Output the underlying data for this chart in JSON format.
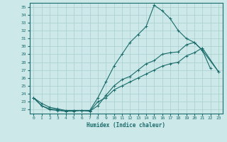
{
  "xlabel": "Humidex (Indice chaleur)",
  "bg_color": "#cce8e8",
  "grid_color": "#aacece",
  "line_color": "#1a6b6b",
  "xlim": [
    -0.5,
    23.5
  ],
  "ylim": [
    21.5,
    35.5
  ],
  "yticks": [
    22,
    23,
    24,
    25,
    26,
    27,
    28,
    29,
    30,
    31,
    32,
    33,
    34,
    35
  ],
  "xticks": [
    0,
    1,
    2,
    3,
    4,
    5,
    6,
    7,
    8,
    9,
    10,
    11,
    12,
    13,
    14,
    15,
    16,
    17,
    18,
    19,
    20,
    21,
    22,
    23
  ],
  "line1_x": [
    0,
    1,
    2,
    3,
    4,
    5,
    6,
    7,
    8,
    9,
    10,
    11,
    12,
    13,
    14,
    15,
    16,
    17,
    18,
    19,
    20,
    21,
    22,
    23
  ],
  "line1_y": [
    23.5,
    22.8,
    22.3,
    22.1,
    21.9,
    21.9,
    21.9,
    21.9,
    23.5,
    25.5,
    27.5,
    29.0,
    30.5,
    31.5,
    32.5,
    35.2,
    34.5,
    33.5,
    32.0,
    31.0,
    30.5,
    29.5,
    27.2,
    null
  ],
  "line2_x": [
    0,
    1,
    2,
    3,
    4,
    5,
    6,
    7,
    8,
    9,
    10,
    11,
    12,
    13,
    14,
    15,
    16,
    17,
    18,
    19,
    20,
    21,
    22,
    23
  ],
  "line2_y": [
    23.5,
    22.5,
    22.0,
    21.9,
    21.8,
    21.8,
    21.9,
    21.8,
    22.5,
    23.8,
    25.0,
    25.8,
    26.2,
    27.0,
    27.8,
    28.2,
    29.0,
    29.2,
    29.3,
    30.2,
    30.5,
    29.5,
    null,
    26.8
  ],
  "line3_x": [
    0,
    1,
    2,
    3,
    4,
    5,
    6,
    7,
    8,
    9,
    10,
    11,
    12,
    13,
    14,
    15,
    16,
    17,
    18,
    19,
    20,
    21,
    22,
    23
  ],
  "line3_y": [
    23.5,
    22.5,
    22.1,
    22.0,
    21.8,
    21.9,
    21.9,
    21.8,
    23.0,
    23.5,
    24.5,
    25.0,
    25.5,
    26.0,
    26.5,
    27.0,
    27.5,
    27.8,
    28.0,
    28.8,
    29.2,
    29.8,
    null,
    26.8
  ]
}
